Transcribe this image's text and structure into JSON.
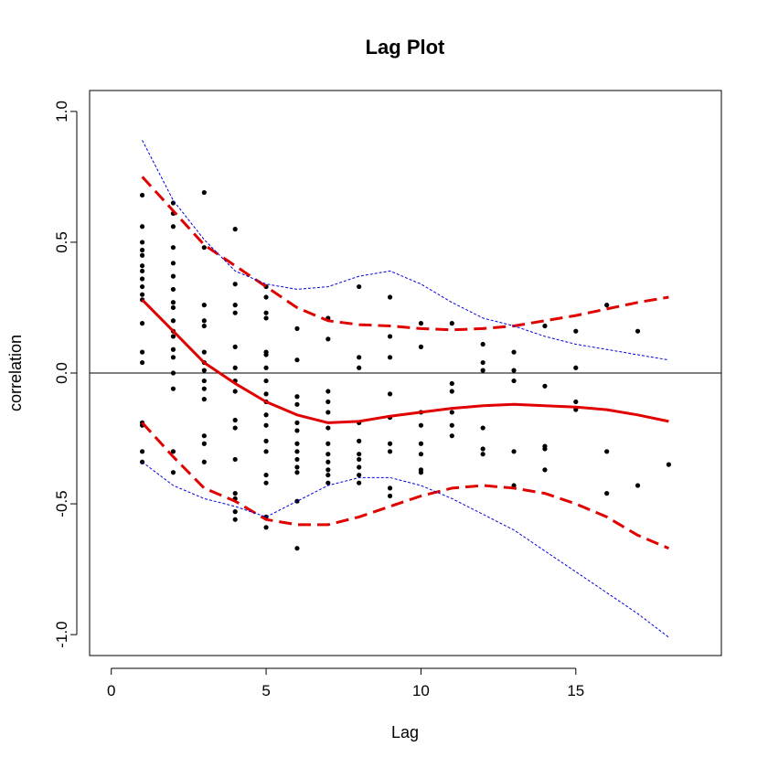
{
  "chart_data": {
    "type": "scatter",
    "title": "Lag Plot",
    "xlabel": "Lag",
    "ylabel": "correlation",
    "xlim": [
      -0.7,
      19.7
    ],
    "ylim": [
      -1.08,
      1.08
    ],
    "xticks": [
      0,
      5,
      10,
      15
    ],
    "yticks": [
      -1.0,
      -0.5,
      0.0,
      0.5,
      1.0
    ],
    "xtick_labels": [
      "0",
      "5",
      "10",
      "15"
    ],
    "ytick_labels": [
      "-1.0",
      "-0.5",
      "0.0",
      "0.5",
      "1.0"
    ],
    "reference_line": {
      "y": 0,
      "color": "#000000"
    },
    "points": [
      [
        1,
        0.68
      ],
      [
        1,
        0.56
      ],
      [
        1,
        0.5
      ],
      [
        1,
        0.47
      ],
      [
        1,
        0.45
      ],
      [
        1,
        0.41
      ],
      [
        1,
        0.39
      ],
      [
        1,
        0.36
      ],
      [
        1,
        0.33
      ],
      [
        1,
        0.3
      ],
      [
        1,
        0.28
      ],
      [
        1,
        0.19
      ],
      [
        1,
        0.08
      ],
      [
        1,
        0.04
      ],
      [
        1,
        -0.19
      ],
      [
        1,
        -0.2
      ],
      [
        1,
        -0.3
      ],
      [
        1,
        -0.34
      ],
      [
        2,
        0.65
      ],
      [
        2,
        0.61
      ],
      [
        2,
        0.56
      ],
      [
        2,
        0.48
      ],
      [
        2,
        0.42
      ],
      [
        2,
        0.37
      ],
      [
        2,
        0.32
      ],
      [
        2,
        0.27
      ],
      [
        2,
        0.25
      ],
      [
        2,
        0.2
      ],
      [
        2,
        0.16
      ],
      [
        2,
        0.14
      ],
      [
        2,
        0.09
      ],
      [
        2,
        0.06
      ],
      [
        2,
        0.0
      ],
      [
        2,
        -0.06
      ],
      [
        2,
        -0.3
      ],
      [
        2,
        -0.38
      ],
      [
        3,
        0.69
      ],
      [
        3,
        0.48
      ],
      [
        3,
        0.26
      ],
      [
        3,
        0.2
      ],
      [
        3,
        0.18
      ],
      [
        3,
        0.08
      ],
      [
        3,
        0.04
      ],
      [
        3,
        0.01
      ],
      [
        3,
        -0.03
      ],
      [
        3,
        -0.06
      ],
      [
        3,
        -0.1
      ],
      [
        3,
        -0.24
      ],
      [
        3,
        -0.27
      ],
      [
        3,
        -0.34
      ],
      [
        4,
        0.55
      ],
      [
        4,
        0.34
      ],
      [
        4,
        0.26
      ],
      [
        4,
        0.23
      ],
      [
        4,
        0.1
      ],
      [
        4,
        0.02
      ],
      [
        4,
        -0.03
      ],
      [
        4,
        -0.07
      ],
      [
        4,
        -0.18
      ],
      [
        4,
        -0.21
      ],
      [
        4,
        -0.33
      ],
      [
        4,
        -0.46
      ],
      [
        4,
        -0.48
      ],
      [
        4,
        -0.53
      ],
      [
        4,
        -0.56
      ],
      [
        5,
        0.33
      ],
      [
        5,
        0.29
      ],
      [
        5,
        0.23
      ],
      [
        5,
        0.21
      ],
      [
        5,
        0.08
      ],
      [
        5,
        0.07
      ],
      [
        5,
        0.02
      ],
      [
        5,
        -0.03
      ],
      [
        5,
        -0.08
      ],
      [
        5,
        -0.11
      ],
      [
        5,
        -0.16
      ],
      [
        5,
        -0.2
      ],
      [
        5,
        -0.26
      ],
      [
        5,
        -0.3
      ],
      [
        5,
        -0.39
      ],
      [
        5,
        -0.42
      ],
      [
        5,
        -0.55
      ],
      [
        5,
        -0.59
      ],
      [
        6,
        0.17
      ],
      [
        6,
        0.05
      ],
      [
        6,
        -0.09
      ],
      [
        6,
        -0.12
      ],
      [
        6,
        -0.19
      ],
      [
        6,
        -0.22
      ],
      [
        6,
        -0.27
      ],
      [
        6,
        -0.3
      ],
      [
        6,
        -0.33
      ],
      [
        6,
        -0.36
      ],
      [
        6,
        -0.38
      ],
      [
        6,
        -0.49
      ],
      [
        6,
        -0.67
      ],
      [
        7,
        0.21
      ],
      [
        7,
        0.13
      ],
      [
        7,
        -0.07
      ],
      [
        7,
        -0.11
      ],
      [
        7,
        -0.15
      ],
      [
        7,
        -0.21
      ],
      [
        7,
        -0.27
      ],
      [
        7,
        -0.31
      ],
      [
        7,
        -0.34
      ],
      [
        7,
        -0.37
      ],
      [
        7,
        -0.39
      ],
      [
        7,
        -0.42
      ],
      [
        8,
        0.33
      ],
      [
        8,
        0.06
      ],
      [
        8,
        0.02
      ],
      [
        8,
        -0.19
      ],
      [
        8,
        -0.26
      ],
      [
        8,
        -0.31
      ],
      [
        8,
        -0.33
      ],
      [
        8,
        -0.36
      ],
      [
        8,
        -0.39
      ],
      [
        8,
        -0.42
      ],
      [
        9,
        0.29
      ],
      [
        9,
        0.14
      ],
      [
        9,
        0.06
      ],
      [
        9,
        -0.08
      ],
      [
        9,
        -0.17
      ],
      [
        9,
        -0.27
      ],
      [
        9,
        -0.3
      ],
      [
        9,
        -0.44
      ],
      [
        9,
        -0.47
      ],
      [
        10,
        0.19
      ],
      [
        10,
        0.1
      ],
      [
        10,
        -0.15
      ],
      [
        10,
        -0.2
      ],
      [
        10,
        -0.27
      ],
      [
        10,
        -0.31
      ],
      [
        10,
        -0.37
      ],
      [
        10,
        -0.38
      ],
      [
        11,
        0.19
      ],
      [
        11,
        -0.04
      ],
      [
        11,
        -0.07
      ],
      [
        11,
        -0.15
      ],
      [
        11,
        -0.2
      ],
      [
        11,
        -0.24
      ],
      [
        12,
        0.11
      ],
      [
        12,
        0.04
      ],
      [
        12,
        0.01
      ],
      [
        12,
        -0.21
      ],
      [
        12,
        -0.29
      ],
      [
        12,
        -0.31
      ],
      [
        13,
        0.08
      ],
      [
        13,
        0.01
      ],
      [
        13,
        -0.03
      ],
      [
        13,
        -0.3
      ],
      [
        13,
        -0.43
      ],
      [
        14,
        0.18
      ],
      [
        14,
        -0.05
      ],
      [
        14,
        -0.28
      ],
      [
        14,
        -0.29
      ],
      [
        14,
        -0.37
      ],
      [
        15,
        0.16
      ],
      [
        15,
        0.02
      ],
      [
        15,
        -0.11
      ],
      [
        15,
        -0.14
      ],
      [
        16,
        0.26
      ],
      [
        16,
        -0.3
      ],
      [
        16,
        -0.46
      ],
      [
        17,
        0.16
      ],
      [
        17,
        -0.43
      ],
      [
        18,
        -0.35
      ]
    ],
    "lines": [
      {
        "role": "smooth-mean",
        "color": "#e00000",
        "style": "solid",
        "x": [
          1,
          2,
          3,
          4,
          5,
          6,
          7,
          8,
          9,
          10,
          11,
          12,
          13,
          14,
          15,
          16,
          17,
          18
        ],
        "y": [
          0.28,
          0.16,
          0.04,
          -0.04,
          -0.11,
          -0.16,
          -0.19,
          -0.185,
          -0.165,
          -0.15,
          -0.135,
          -0.125,
          -0.12,
          -0.125,
          -0.13,
          -0.14,
          -0.16,
          -0.185
        ]
      },
      {
        "role": "upper-band",
        "color": "#e00000",
        "style": "dashed",
        "x": [
          1,
          2,
          3,
          4,
          5,
          6,
          7,
          8,
          9,
          10,
          11,
          12,
          13,
          14,
          15,
          16,
          17,
          18
        ],
        "y": [
          0.75,
          0.62,
          0.49,
          0.41,
          0.33,
          0.25,
          0.2,
          0.185,
          0.18,
          0.17,
          0.165,
          0.17,
          0.18,
          0.2,
          0.22,
          0.245,
          0.27,
          0.29
        ]
      },
      {
        "role": "lower-band",
        "color": "#e00000",
        "style": "dashed",
        "x": [
          1,
          2,
          3,
          4,
          5,
          6,
          7,
          8,
          9,
          10,
          11,
          12,
          13,
          14,
          15,
          16,
          17,
          18
        ],
        "y": [
          -0.19,
          -0.32,
          -0.44,
          -0.49,
          -0.56,
          -0.58,
          -0.58,
          -0.55,
          -0.51,
          -0.47,
          -0.44,
          -0.43,
          -0.44,
          -0.46,
          -0.5,
          -0.55,
          -0.62,
          -0.67
        ]
      },
      {
        "role": "upper-envelope",
        "color": "#0000dd",
        "style": "dotted",
        "x": [
          1,
          2,
          3,
          4,
          5,
          6,
          7,
          8,
          9,
          10,
          11,
          12,
          13,
          14,
          15,
          16,
          17,
          18
        ],
        "y": [
          0.89,
          0.66,
          0.51,
          0.39,
          0.34,
          0.32,
          0.33,
          0.37,
          0.39,
          0.34,
          0.27,
          0.21,
          0.18,
          0.14,
          0.11,
          0.09,
          0.07,
          0.05
        ]
      },
      {
        "role": "lower-envelope",
        "color": "#0000dd",
        "style": "dotted",
        "x": [
          1,
          2,
          3,
          4,
          5,
          6,
          7,
          8,
          9,
          10,
          11,
          12,
          13,
          14,
          15,
          16,
          17,
          18
        ],
        "y": [
          -0.34,
          -0.43,
          -0.48,
          -0.51,
          -0.55,
          -0.49,
          -0.43,
          -0.4,
          -0.4,
          -0.43,
          -0.48,
          -0.54,
          -0.6,
          -0.68,
          -0.76,
          -0.84,
          -0.92,
          -1.01
        ]
      }
    ]
  }
}
